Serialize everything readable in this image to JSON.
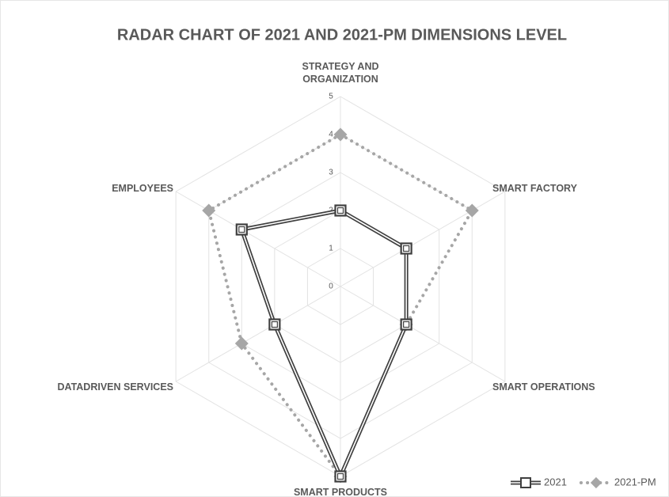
{
  "chart_data": {
    "type": "radar",
    "title": "RADAR CHART OF 2021 AND 2021-PM DIMENSIONS LEVEL",
    "categories": [
      "STRATEGY AND ORGANIZATION",
      "SMART FACTORY",
      "SMART OPERATIONS",
      "SMART PRODUCTS",
      "DATADRIVEN SERVICES",
      "EMPLOYEES"
    ],
    "series": [
      {
        "name": "2021",
        "color": "#404040",
        "values": [
          2,
          2,
          2,
          5,
          2,
          3
        ]
      },
      {
        "name": "2021-PM",
        "color": "#a6a6a6",
        "values": [
          4,
          4,
          2,
          5,
          3,
          4
        ]
      }
    ],
    "ylim": [
      0,
      5
    ],
    "yticks": [
      0,
      1,
      2,
      3,
      4,
      5
    ],
    "grid": true,
    "legend": "bottom-right"
  }
}
